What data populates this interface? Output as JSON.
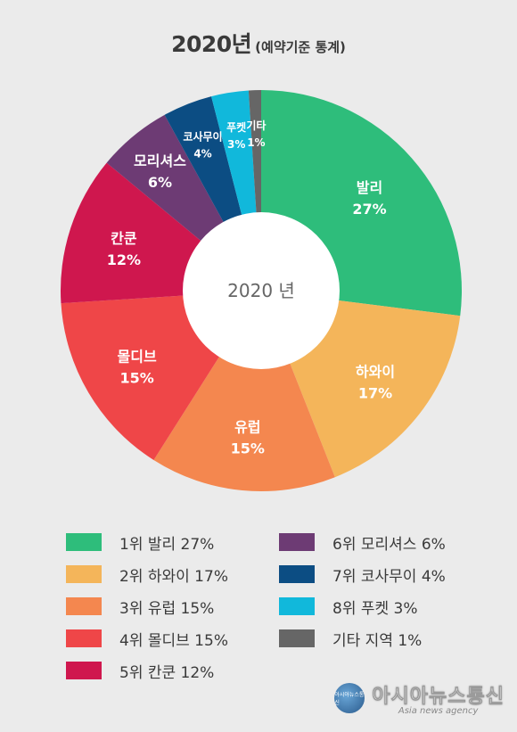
{
  "title": {
    "main": "2020년",
    "sub": "(예약기준 통계)"
  },
  "chart_data": {
    "type": "pie",
    "donut": true,
    "center_label": "2020 년",
    "slices": [
      {
        "label": "발리",
        "value": 27,
        "value_label": "27%",
        "color": "#2ebd7b"
      },
      {
        "label": "하와이",
        "value": 17,
        "value_label": "17%",
        "color": "#f4b55a"
      },
      {
        "label": "유럽",
        "value": 15,
        "value_label": "15%",
        "color": "#f4874f"
      },
      {
        "label": "몰디브",
        "value": 15,
        "value_label": "15%",
        "color": "#ef4648"
      },
      {
        "label": "칸쿤",
        "value": 12,
        "value_label": "12%",
        "color": "#cf174e"
      },
      {
        "label": "모리셔스",
        "value": 6,
        "value_label": "6%",
        "color": "#6d3b74"
      },
      {
        "label": "코사무이",
        "value": 4,
        "value_label": "4%",
        "color": "#0c4d83"
      },
      {
        "label": "푸켓",
        "value": 3,
        "value_label": "3%",
        "color": "#11b8db"
      },
      {
        "label": "기타",
        "value": 1,
        "value_label": "1%",
        "color": "#666666"
      }
    ],
    "legend": [
      "1위 발리 27%",
      "2위 하와이 17%",
      "3위 유럽 15%",
      "4위 몰디브 15%",
      "5위 칸쿤 12%",
      "6위 모리셔스 6%",
      "7위 코사무이 4%",
      "8위 푸켓 3%",
      "기타 지역 1%"
    ],
    "legend_placement": "bottom, two columns"
  },
  "footer": {
    "logo_icon": "globe-icon",
    "logo_text": "아시아뉴스통신",
    "brand_ko": "아시아뉴스통신",
    "brand_en": "Asia news agency"
  }
}
